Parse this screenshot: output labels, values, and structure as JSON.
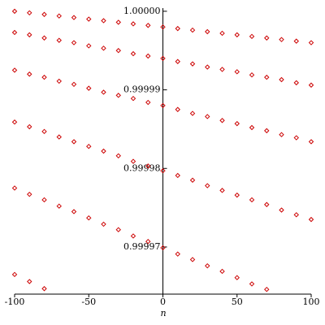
{
  "chart_data": {
    "type": "scatter",
    "xlabel": "n",
    "x": [
      -100,
      -90,
      -80,
      -70,
      -60,
      -50,
      -40,
      -30,
      -20,
      -10,
      0,
      10,
      20,
      30,
      40,
      50,
      60,
      70,
      80,
      90,
      100
    ],
    "series": [
      {
        "color": "#cc0000",
        "values": [
          1.0,
          0.9999998,
          0.9999996,
          0.9999994,
          0.9999992,
          0.999999,
          0.9999988,
          0.9999986,
          0.9999984,
          0.9999982,
          0.999998,
          0.9999978,
          0.9999976,
          0.9999974,
          0.9999972,
          0.999997,
          0.9999968,
          0.9999966,
          0.9999964,
          0.9999962,
          0.999996
        ]
      },
      {
        "color": "#cc0000",
        "values": [
          0.9999973,
          0.999997,
          0.9999966,
          0.9999963,
          0.999996,
          0.9999956,
          0.9999953,
          0.999995,
          0.9999946,
          0.9999943,
          0.999994,
          0.9999936,
          0.9999933,
          0.9999929,
          0.9999926,
          0.9999923,
          0.9999919,
          0.9999916,
          0.9999913,
          0.9999909,
          0.9999906
        ]
      },
      {
        "color": "#cc0000",
        "values": [
          0.9999925,
          0.999992,
          0.9999916,
          0.9999911,
          0.9999907,
          0.9999902,
          0.9999897,
          0.9999893,
          0.9999889,
          0.9999884,
          0.999988,
          0.9999875,
          0.999987,
          0.9999866,
          0.9999861,
          0.9999857,
          0.9999852,
          0.9999848,
          0.9999843,
          0.9999839,
          0.9999834
        ]
      },
      {
        "color": "#cc0000",
        "values": [
          0.9999859,
          0.9999853,
          0.9999847,
          0.999984,
          0.9999834,
          0.9999828,
          0.9999822,
          0.9999816,
          0.9999809,
          0.9999803,
          0.9999797,
          0.9999791,
          0.9999785,
          0.9999778,
          0.9999772,
          0.9999766,
          0.999976,
          0.9999754,
          0.9999747,
          0.9999741,
          0.9999735
        ]
      },
      {
        "color": "#cc0000",
        "values": [
          0.9999775,
          0.9999767,
          0.999976,
          0.9999752,
          0.9999745,
          0.9999737,
          0.9999729,
          0.9999722,
          0.9999714,
          0.9999707,
          0.9999699,
          0.9999691,
          0.9999684,
          0.9999676,
          0.9999669,
          0.9999661,
          0.9999653,
          0.9999646,
          null,
          null,
          null
        ]
      },
      {
        "color": "#cc0000",
        "values": [
          0.9999665,
          0.9999656,
          0.9999647,
          null,
          null,
          null,
          null,
          null,
          null,
          null,
          null,
          null,
          null,
          null,
          null,
          null,
          null,
          null,
          null,
          null,
          null
        ]
      }
    ],
    "xlim": [
      -100,
      100
    ],
    "xticks": [
      -100,
      -50,
      0,
      50,
      100
    ],
    "ylim": [
      0.999964,
      1.0000004
    ],
    "yticks": [
      0.99997,
      0.99998,
      0.99999,
      {
        "value": 1,
        "label": "1.00000"
      }
    ]
  }
}
